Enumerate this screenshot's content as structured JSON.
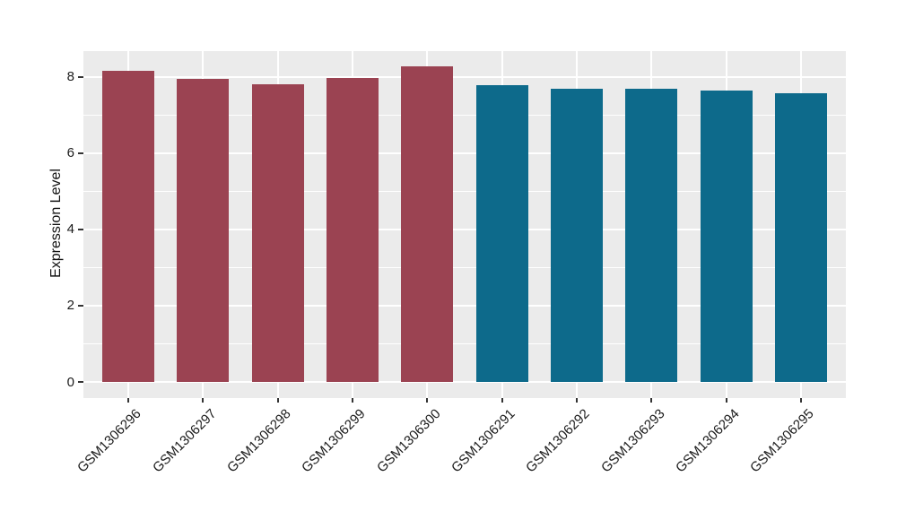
{
  "figure": {
    "background_color": "#FFFFFF"
  },
  "chart_data": {
    "type": "bar",
    "title": "",
    "xlabel": "",
    "ylabel": "Expression Level",
    "categories": [
      "GSM1306296",
      "GSM1306297",
      "GSM1306298",
      "GSM1306299",
      "GSM1306300",
      "GSM1306291",
      "GSM1306292",
      "GSM1306293",
      "GSM1306294",
      "GSM1306295"
    ],
    "values": [
      8.16,
      7.94,
      7.8,
      7.96,
      8.26,
      7.78,
      7.69,
      7.68,
      7.63,
      7.56
    ],
    "bar_colors": [
      "#9B4352",
      "#9B4352",
      "#9B4352",
      "#9B4352",
      "#9B4352",
      "#0D6A8B",
      "#0D6A8B",
      "#0D6A8B",
      "#0D6A8B",
      "#0D6A8B"
    ],
    "group_colors": {
      "group_1": "#9B4352",
      "group_2": "#0D6A8B"
    },
    "yticks": [
      0,
      2,
      4,
      6,
      8
    ],
    "ytick_labels": [
      "0",
      "2",
      "4",
      "6",
      "8"
    ],
    "yticks_minor": [
      1,
      3,
      5,
      7
    ],
    "ylim": [
      0,
      8.26
    ],
    "ylim_extended": [
      -0.42,
      8.67
    ],
    "xdomain_extended": [
      0.4,
      10.6
    ],
    "bar_width_fraction": 0.7,
    "grid": true,
    "legend_position": "none",
    "panel_background": "#EBEBEB",
    "gridline_color": "#FFFFFF"
  }
}
